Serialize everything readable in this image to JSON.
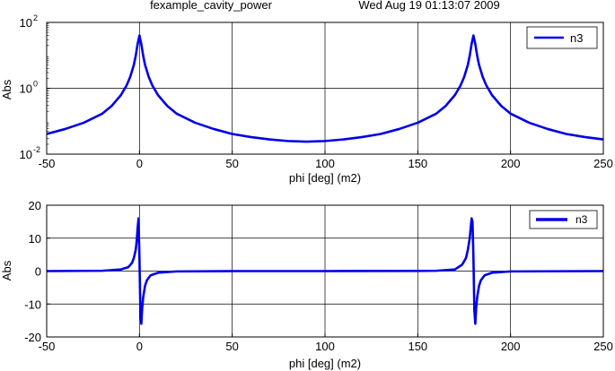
{
  "header": {
    "title": "fexample_cavity_power",
    "timestamp": "Wed Aug 19 01:13:07 2009"
  },
  "colors": {
    "series": "#0000e6",
    "grid": "#000000",
    "axes": "#000000"
  },
  "chart_data": [
    {
      "type": "line",
      "yscale": "log",
      "xlabel": "phi [deg] (m2)",
      "ylabel": "Abs",
      "xlim": [
        -50,
        250
      ],
      "ylim": [
        0.01,
        100
      ],
      "xticks": [
        "-50",
        "0",
        "50",
        "100",
        "150",
        "200",
        "250"
      ],
      "yticks": [
        {
          "base": "10",
          "exp": "2",
          "value": 100
        },
        {
          "base": "10",
          "exp": "0",
          "value": 1
        },
        {
          "base": "10",
          "exp": "-2",
          "value": 0.01
        }
      ],
      "grid": true,
      "legend_position": "top-right",
      "series": [
        {
          "name": "n3",
          "x": [
            -50,
            -40,
            -30,
            -20,
            -15,
            -10,
            -7,
            -5,
            -3,
            -2,
            -1,
            0,
            1,
            2,
            3,
            5,
            7,
            10,
            15,
            20,
            30,
            40,
            50,
            60,
            70,
            80,
            90,
            100,
            110,
            120,
            130,
            140,
            150,
            160,
            165,
            170,
            173,
            175,
            177,
            178,
            179,
            180,
            181,
            182,
            183,
            185,
            187,
            190,
            195,
            200,
            210,
            220,
            230,
            240,
            250
          ],
          "y": [
            0.041,
            0.058,
            0.09,
            0.17,
            0.29,
            0.62,
            1.2,
            2.2,
            5.2,
            9.8,
            22,
            40,
            22,
            9.8,
            5.2,
            2.2,
            1.2,
            0.62,
            0.29,
            0.17,
            0.09,
            0.058,
            0.041,
            0.033,
            0.028,
            0.025,
            0.024,
            0.025,
            0.028,
            0.033,
            0.041,
            0.058,
            0.09,
            0.17,
            0.29,
            0.62,
            1.2,
            2.2,
            5.2,
            9.8,
            22,
            40,
            22,
            9.8,
            5.2,
            2.2,
            1.2,
            0.62,
            0.29,
            0.17,
            0.09,
            0.058,
            0.041,
            0.033,
            0.028
          ]
        }
      ]
    },
    {
      "type": "line",
      "yscale": "linear",
      "xlabel": "phi [deg] (m2)",
      "ylabel": "Abs",
      "xlim": [
        -50,
        250
      ],
      "ylim": [
        -20,
        20
      ],
      "xticks": [
        "-50",
        "0",
        "50",
        "100",
        "150",
        "200",
        "250"
      ],
      "yticks": [
        "20",
        "10",
        "0",
        "-10",
        "-20"
      ],
      "grid": true,
      "legend_position": "top-right",
      "series": [
        {
          "name": "n3",
          "x": [
            -50,
            -20,
            -10,
            -6,
            -4,
            -3,
            -2,
            -1.5,
            -1,
            -0.5,
            0,
            0.5,
            1,
            1.5,
            2,
            3,
            4,
            6,
            10,
            20,
            50,
            100,
            150,
            160,
            170,
            174,
            176,
            177,
            178,
            178.5,
            179,
            179.5,
            180,
            180.5,
            181,
            181.5,
            182,
            183,
            184,
            186,
            190,
            200,
            250
          ],
          "y": [
            0,
            0.1,
            0.5,
            1.2,
            2.5,
            4.0,
            6.5,
            9,
            13,
            16,
            4,
            -12,
            -16,
            -11,
            -8,
            -4.5,
            -2.8,
            -1.3,
            -0.5,
            -0.1,
            0,
            0,
            0.05,
            0.1,
            0.5,
            2,
            4,
            6.5,
            10,
            13,
            16,
            15,
            4,
            -12,
            -16,
            -11,
            -8,
            -4.5,
            -2.8,
            -1.3,
            -0.5,
            -0.1,
            0
          ]
        }
      ]
    }
  ]
}
